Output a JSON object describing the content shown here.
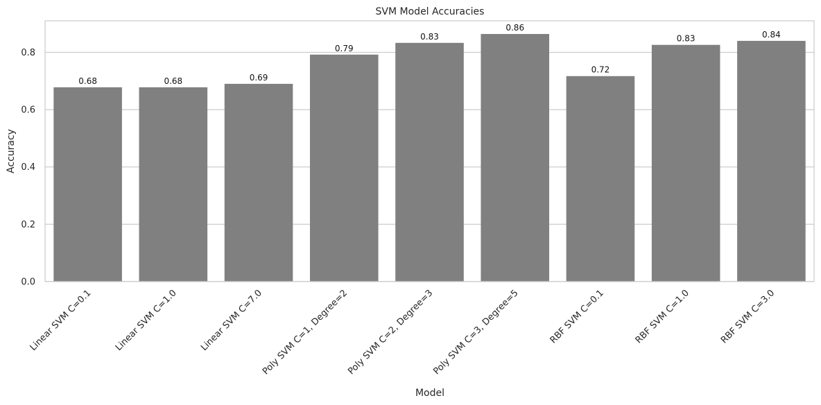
{
  "chart_data": {
    "type": "bar",
    "title": "SVM Model Accuracies",
    "xlabel": "Model",
    "ylabel": "Accuracy",
    "categories": [
      "Linear SVM C=0.1",
      "Linear SVM C=1.0",
      "Linear SVM C=7.0",
      "Poly SVM C=1, Degree=2",
      "Poly SVM C=2, Degree=3",
      "Poly SVM C=3, Degree=5",
      "RBF SVM C=0.1",
      "RBF SVM C=1.0",
      "RBF SVM C=3.0"
    ],
    "values": [
      0.678,
      0.678,
      0.69,
      0.792,
      0.833,
      0.864,
      0.717,
      0.826,
      0.84
    ],
    "data_labels": [
      "0.68",
      "0.68",
      "0.69",
      "0.79",
      "0.83",
      "0.86",
      "0.72",
      "0.83",
      "0.84"
    ],
    "ylim": [
      0,
      0.91
    ],
    "yticks": [
      "0.0",
      "0.2",
      "0.4",
      "0.6",
      "0.8"
    ],
    "grid": "horizontal",
    "bar_color": "#808080",
    "grid_color": "#cccccc",
    "axes_edge_color": "#cccccc",
    "legend": "none"
  }
}
